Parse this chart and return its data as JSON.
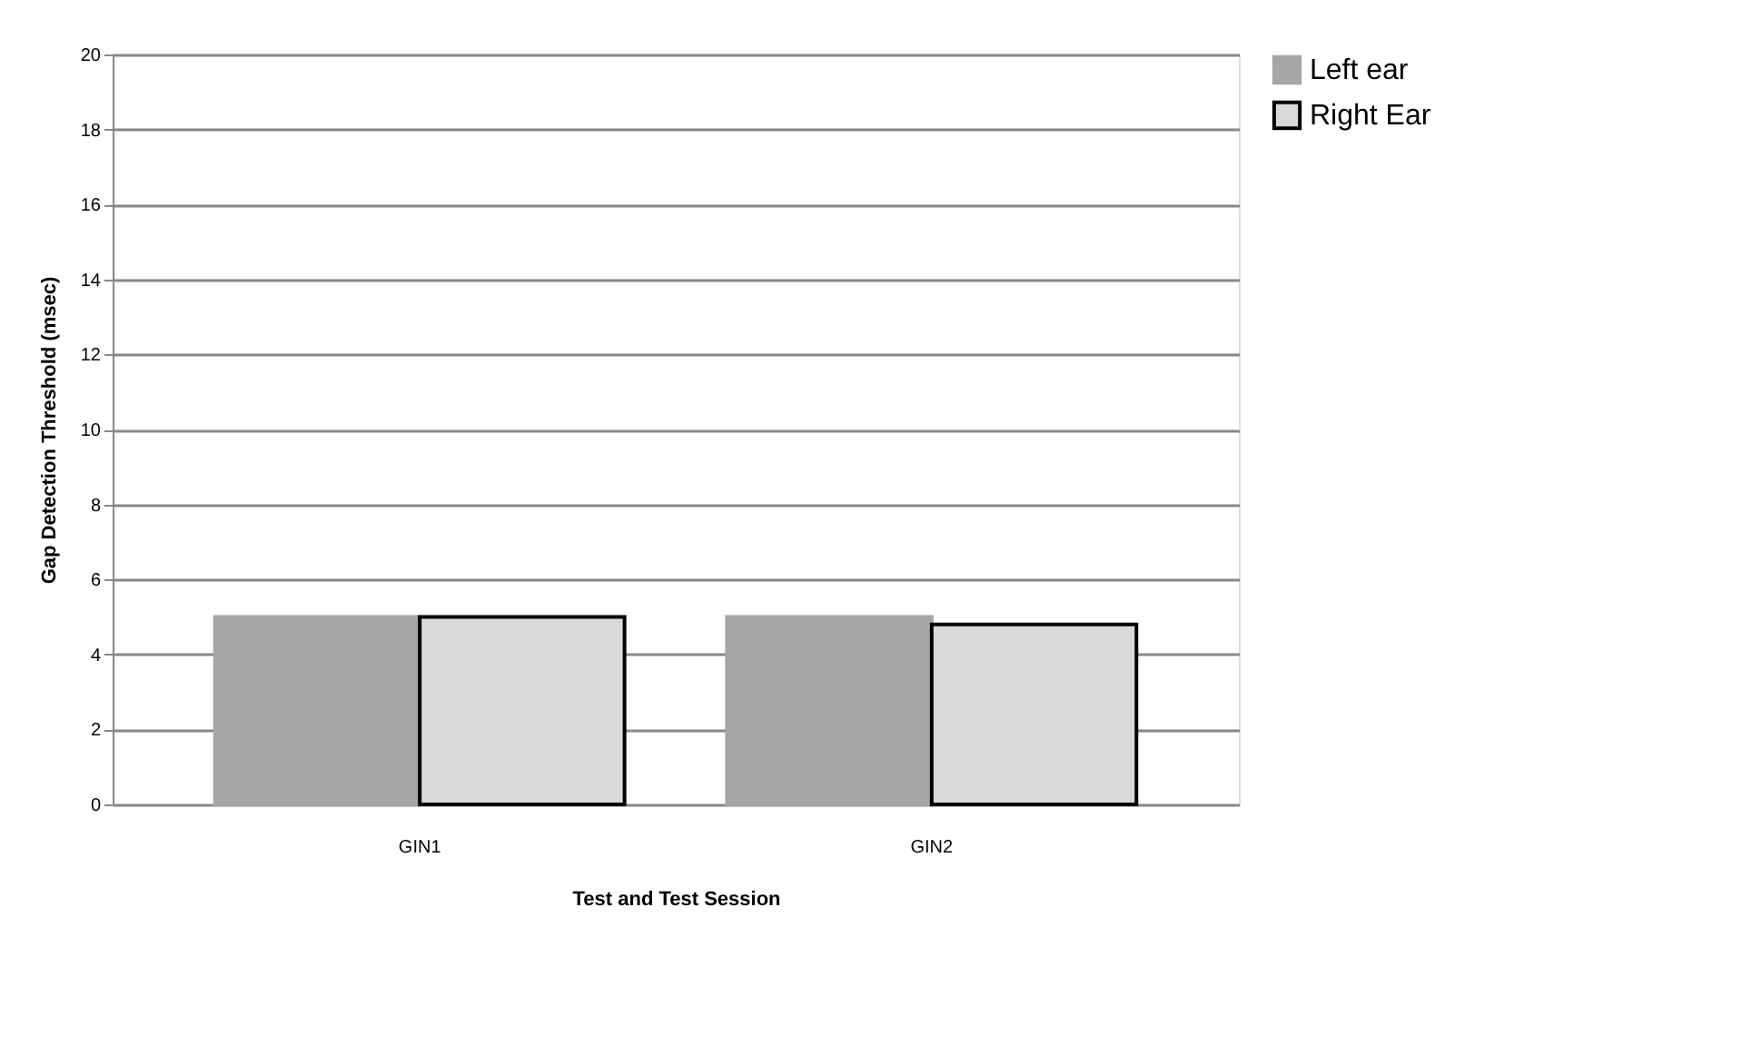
{
  "chart_data": {
    "type": "bar",
    "xlabel": "Test and Test Session",
    "ylabel": "Gap Detection Threshold (msec)",
    "categories": [
      "GIN1",
      "GIN2"
    ],
    "series": [
      {
        "name": "Left ear",
        "color": "#a6a6a6",
        "values": [
          5.0,
          5.0
        ]
      },
      {
        "name": "Right Ear",
        "color": "#d9d9d9",
        "values": [
          5.0,
          4.8
        ]
      }
    ],
    "ylim": [
      0,
      20
    ],
    "yticks": [
      0,
      2,
      4,
      6,
      8,
      10,
      12,
      14,
      16,
      18,
      20
    ],
    "grid": "y",
    "legend": "right"
  }
}
